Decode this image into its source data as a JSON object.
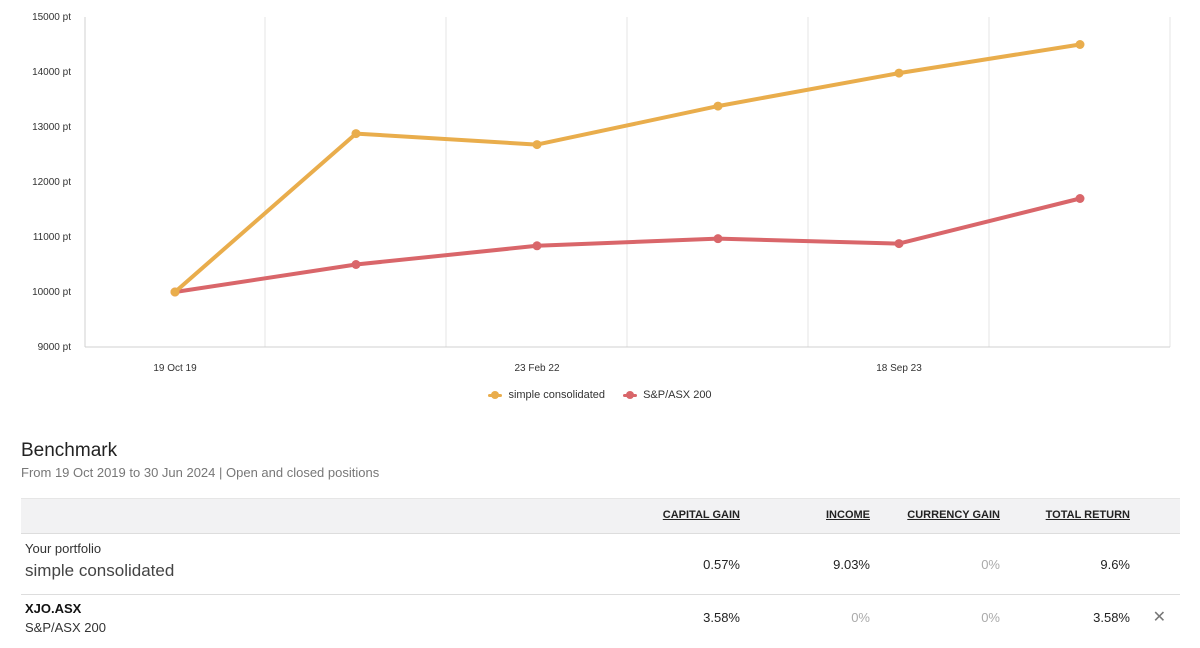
{
  "chart_data": {
    "type": "line",
    "y_ticks": [
      "15000 pt",
      "14000 pt",
      "13000 pt",
      "12000 pt",
      "11000 pt",
      "10000 pt",
      "9000 pt"
    ],
    "ylim": [
      9000,
      15000
    ],
    "x_tick_labels": [
      "19 Oct 19",
      "23 Feb 22",
      "18 Sep 23"
    ],
    "x_tick_indices": [
      0,
      2,
      4
    ],
    "point_count": 6,
    "series": [
      {
        "name": "simple consolidated",
        "color": "#e9ad4c",
        "values": [
          10000,
          12880,
          12680,
          13380,
          13980,
          14500
        ]
      },
      {
        "name": "S&P/ASX 200",
        "color": "#d9666a",
        "values": [
          10000,
          10500,
          10840,
          10970,
          10880,
          11700
        ]
      }
    ],
    "legend": [
      "simple consolidated",
      "S&P/ASX 200"
    ]
  },
  "benchmark": {
    "title": "Benchmark",
    "subtitle": "From 19 Oct 2019 to 30 Jun 2024 | Open and closed positions",
    "columns": [
      "CAPITAL GAIN",
      "INCOME",
      "CURRENCY GAIN",
      "TOTAL RETURN"
    ],
    "rows": [
      {
        "label_small": "Your portfolio",
        "label_large": "simple consolidated",
        "capital_gain": "0.57%",
        "income": "9.03%",
        "currency_gain": "0%",
        "total_return": "9.6%"
      },
      {
        "code": "XJO.ASX",
        "name": "S&P/ASX 200",
        "capital_gain": "3.58%",
        "income": "0%",
        "currency_gain": "0%",
        "total_return": "3.58%",
        "close_symbol": "✕"
      }
    ]
  }
}
